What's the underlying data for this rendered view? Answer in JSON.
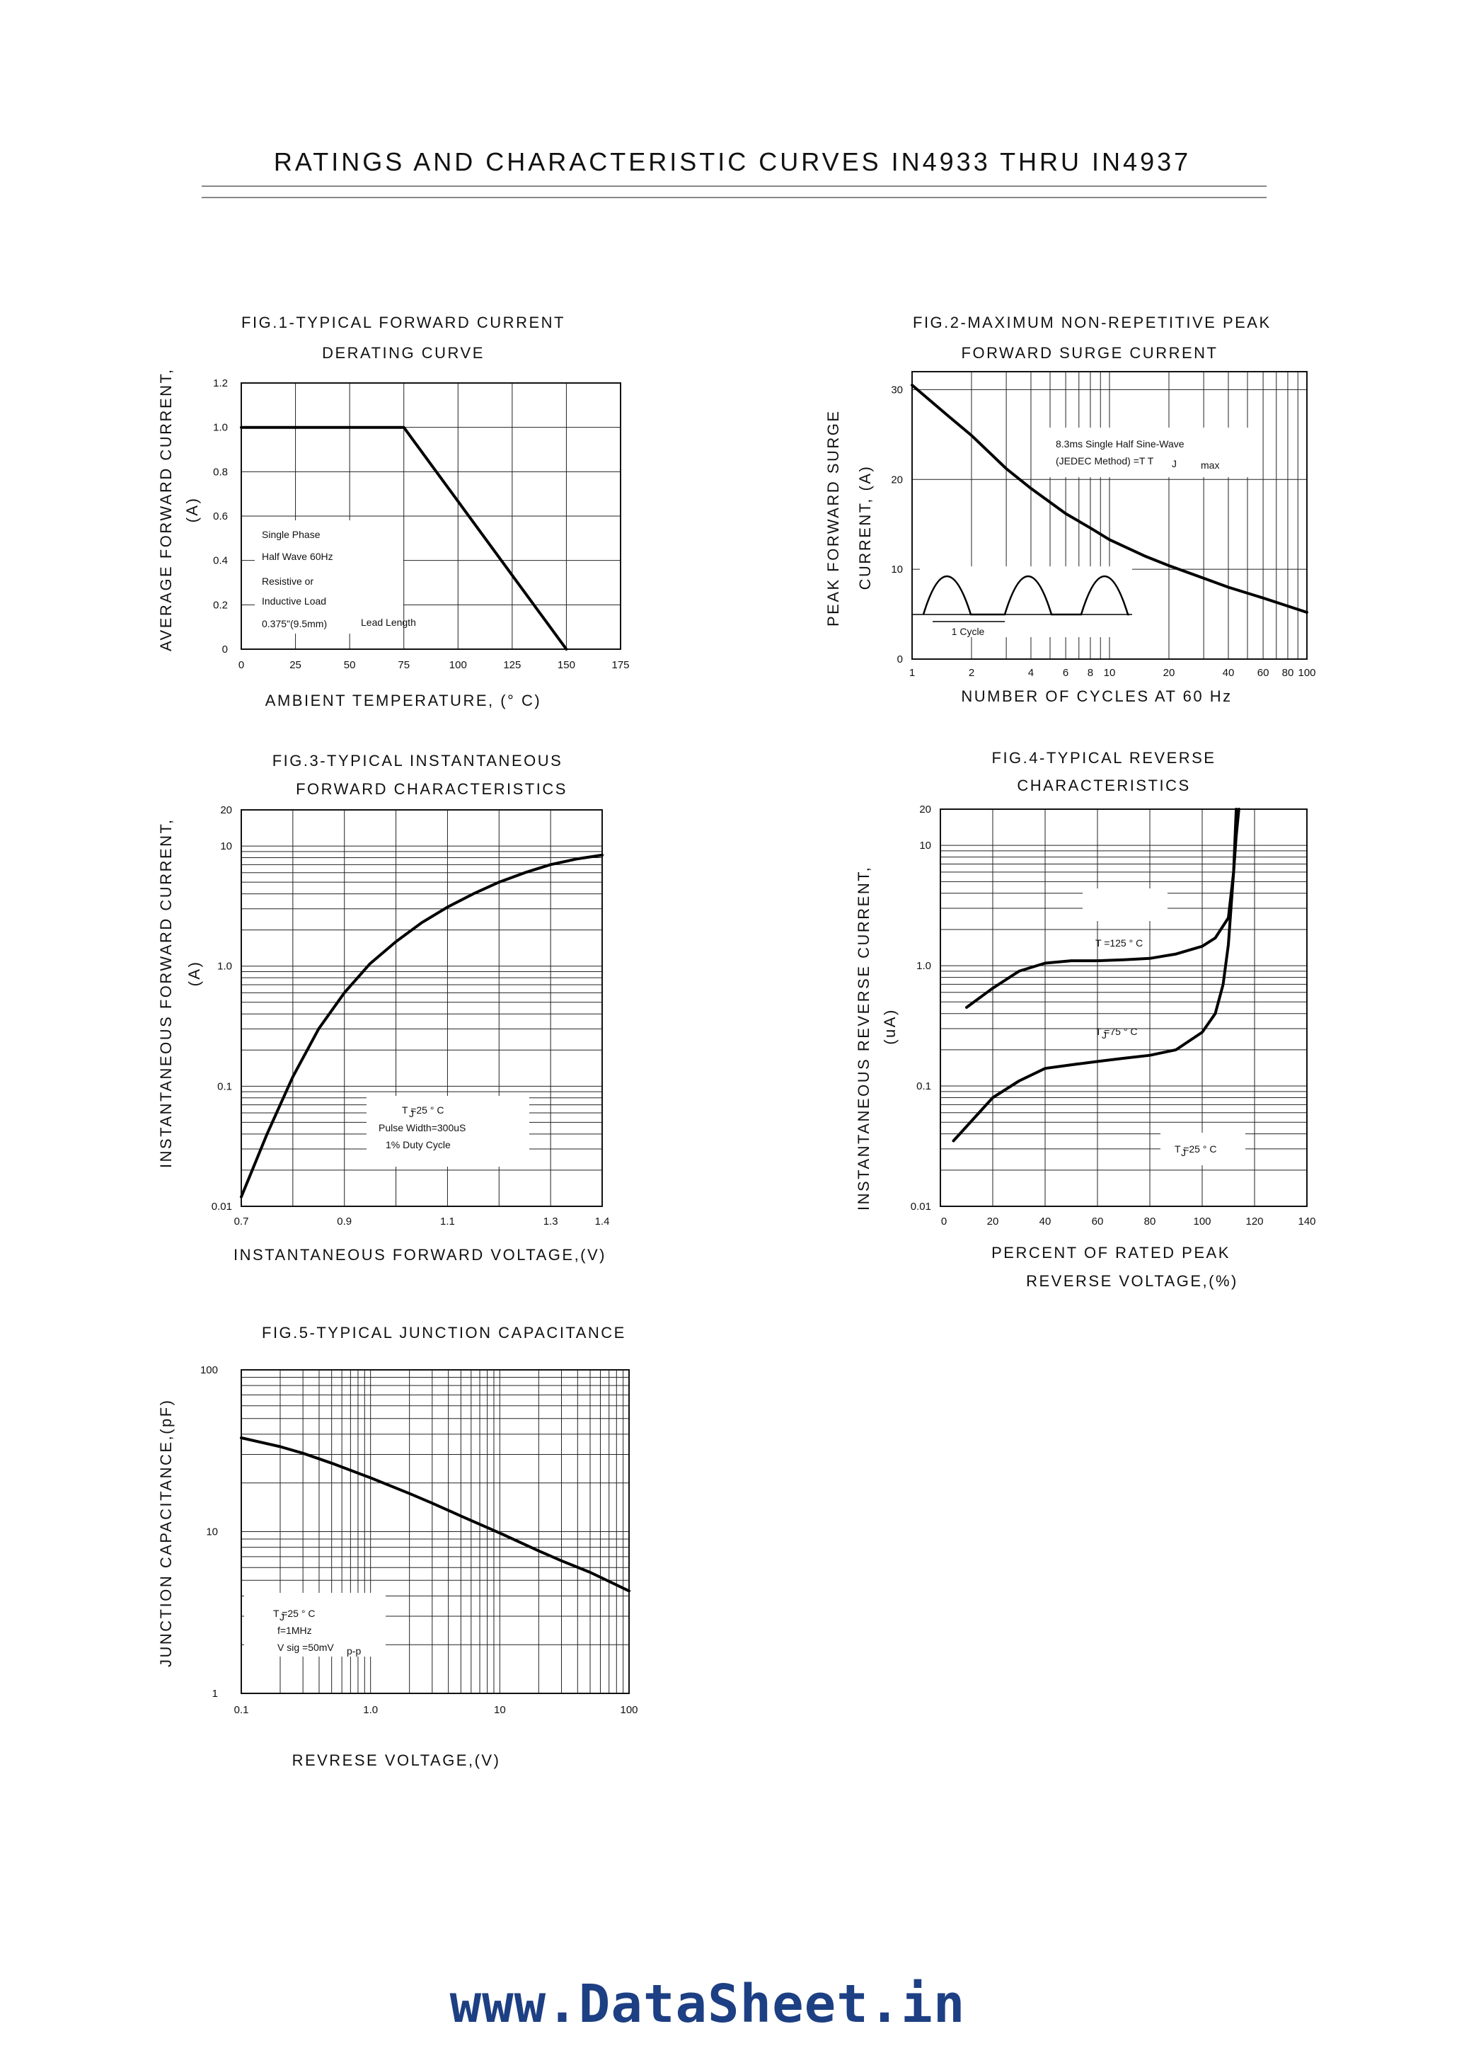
{
  "document": {
    "title": "RATINGS AND CHARACTERISTIC CURVES IN4933 THRU IN4937",
    "watermark": "www.DataSheet.in"
  },
  "chart_data": [
    {
      "id": "fig1",
      "type": "line",
      "title_lines": [
        "FIG.1-TYPICAL FORWARD CURRENT",
        "DERATING CURVE"
      ],
      "xlabel": "AMBIENT TEMPERATURE, (° C)",
      "ylabel_lines": [
        "AVERAGE FORWARD CURRENT,",
        "(A)"
      ],
      "x_ticks": [
        "0",
        "25",
        "50",
        "75",
        "100",
        "125",
        "150",
        "175"
      ],
      "y_ticks": [
        "0",
        "0.2",
        "0.4",
        "0.6",
        "0.8",
        "1.0",
        "1.2"
      ],
      "xlim": [
        0,
        175
      ],
      "ylim": [
        0,
        1.2
      ],
      "x_scale": "linear",
      "y_scale": "linear",
      "grid": true,
      "annotations": [
        "Single Phase",
        "Half Wave 60Hz",
        "Resistive or",
        "Inductive Load",
        "0.375\"(9.5mm)",
        "Lead Length"
      ],
      "series": [
        {
          "x": [
            0,
            75,
            150
          ],
          "y": [
            1.0,
            1.0,
            0.0
          ]
        }
      ]
    },
    {
      "id": "fig2",
      "type": "line",
      "title_lines": [
        "FIG.2-MAXIMUM NON-REPETITIVE PEAK",
        "FORWARD SURGE CURRENT"
      ],
      "xlabel": "NUMBER OF CYCLES AT 60 Hz",
      "ylabel_lines": [
        "PEAK FORWARD SURGE",
        "CURRENT, (A)"
      ],
      "x_ticks": [
        "1",
        "2",
        "4",
        "6",
        "8",
        "10",
        "20",
        "40",
        "60",
        "80",
        "100"
      ],
      "y_ticks": [
        "0",
        "10",
        "20",
        "30"
      ],
      "xlim": [
        1,
        100
      ],
      "ylim": [
        0,
        32
      ],
      "x_scale": "log",
      "y_scale": "linear",
      "grid": true,
      "annotations": [
        "8.3ms Single Half Sine-Wave",
        "(JEDEC Method) =T T",
        "J",
        "max",
        "1 Cycle"
      ],
      "series": [
        {
          "x": [
            1,
            1.5,
            2,
            3,
            4,
            6,
            8,
            10,
            15,
            20,
            30,
            40,
            60,
            80,
            100
          ],
          "y": [
            30.5,
            27.2,
            24.9,
            21.2,
            19.0,
            16.2,
            14.6,
            13.3,
            11.5,
            10.4,
            9.0,
            8.0,
            6.8,
            5.9,
            5.2
          ]
        }
      ]
    },
    {
      "id": "fig3",
      "type": "line",
      "title_lines": [
        "FIG.3-TYPICAL INSTANTANEOUS",
        "FORWARD CHARACTERISTICS"
      ],
      "xlabel": "INSTANTANEOUS FORWARD VOLTAGE,(V)",
      "ylabel_lines": [
        "INSTANTANEOUS FORWARD CURRENT,",
        "(A)"
      ],
      "x_ticks": [
        "0.7",
        "0.9",
        "1.1",
        "1.3",
        "1.4"
      ],
      "y_ticks": [
        "0.01",
        "0.1",
        "1.0",
        "10",
        "20"
      ],
      "xlim": [
        0.7,
        1.4
      ],
      "ylim": [
        0.01,
        20
      ],
      "x_scale": "linear",
      "y_scale": "log",
      "grid": true,
      "annotations": [
        "T =25 ° C",
        "J",
        "Pulse Width=300uS",
        "1% Duty Cycle"
      ],
      "series": [
        {
          "x": [
            0.7,
            0.75,
            0.8,
            0.85,
            0.9,
            0.95,
            1.0,
            1.05,
            1.1,
            1.15,
            1.2,
            1.25,
            1.3,
            1.35,
            1.4
          ],
          "y": [
            0.012,
            0.04,
            0.12,
            0.3,
            0.6,
            1.05,
            1.6,
            2.3,
            3.1,
            4.0,
            5.0,
            6.0,
            7.0,
            7.8,
            8.4
          ]
        }
      ]
    },
    {
      "id": "fig4",
      "type": "line",
      "title_lines": [
        "FIG.4-TYPICAL REVERSE",
        "CHARACTERISTICS"
      ],
      "xlabel_lines": [
        "PERCENT OF RATED PEAK",
        "REVERSE VOLTAGE,(%)"
      ],
      "ylabel_lines": [
        "INSTANTANEOUS REVERSE CURRENT,",
        "(uA)"
      ],
      "x_ticks": [
        "0",
        "20",
        "40",
        "60",
        "80",
        "100",
        "120",
        "140"
      ],
      "y_ticks": [
        "0.01",
        "0.1",
        "1.0",
        "10",
        "20"
      ],
      "xlim": [
        0,
        140
      ],
      "ylim": [
        0.01,
        20
      ],
      "x_scale": "linear",
      "y_scale": "log",
      "grid": true,
      "annotations": [
        "T =125 ° C",
        "T =75 ° C",
        "J",
        "T =25 ° C",
        "J"
      ],
      "series": [
        {
          "x": [
            10,
            20,
            30,
            40,
            50,
            60,
            70,
            80,
            90,
            100,
            105,
            110,
            112,
            113
          ],
          "y": [
            0.45,
            0.65,
            0.9,
            1.05,
            1.1,
            1.1,
            1.12,
            1.15,
            1.25,
            1.45,
            1.7,
            2.5,
            6,
            20
          ]
        },
        {
          "x": [
            5,
            20,
            30,
            40,
            50,
            60,
            70,
            80,
            90,
            100,
            105,
            108,
            110,
            111,
            112,
            113,
            114
          ],
          "y": [
            0.035,
            0.08,
            0.11,
            0.14,
            0.15,
            0.16,
            0.17,
            0.18,
            0.2,
            0.28,
            0.4,
            0.7,
            1.5,
            3,
            6,
            12,
            20
          ]
        }
      ]
    },
    {
      "id": "fig5",
      "type": "line",
      "title_lines": [
        "FIG.5-TYPICAL JUNCTION CAPACITANCE"
      ],
      "xlabel": "REVRESE VOLTAGE,(V)",
      "ylabel_lines": [
        "JUNCTION CAPACITANCE,(pF)"
      ],
      "x_ticks": [
        "0.1",
        "1.0",
        "10",
        "100"
      ],
      "y_ticks": [
        "1",
        "10",
        "100"
      ],
      "xlim": [
        0.1,
        100
      ],
      "ylim": [
        1,
        100
      ],
      "x_scale": "log",
      "y_scale": "log",
      "grid": true,
      "annotations": [
        "T =25 ° C",
        "J",
        "f=1MHz",
        "V sig =50mV",
        "p-p"
      ],
      "series": [
        {
          "x": [
            0.1,
            0.2,
            0.3,
            0.5,
            1,
            2,
            3,
            5,
            10,
            20,
            30,
            50,
            100
          ],
          "y": [
            38,
            33.5,
            30.5,
            26.5,
            21.5,
            17.2,
            15,
            12.5,
            9.8,
            7.6,
            6.6,
            5.6,
            4.3
          ]
        }
      ]
    }
  ]
}
